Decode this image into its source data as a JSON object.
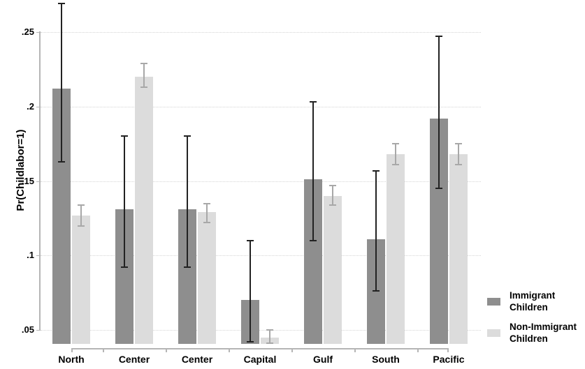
{
  "figure": {
    "background": "#ffffff",
    "text_color": "#000000",
    "axis_color": "#b5b5b5",
    "grid_color": "#d4d4d4"
  },
  "chart_data": {
    "type": "bar",
    "title": "",
    "xlabel": "",
    "ylabel": "Pr(Childlabor=1)",
    "grid": "horizontal-dotted",
    "legend_position": "right",
    "ylim": [
      0.041,
      0.268
    ],
    "categories": [
      "North",
      "Center",
      "Center",
      "Capital",
      "Gulf",
      "South",
      "Pacific"
    ],
    "y_ticks": [
      {
        "label": ".05",
        "value": 0.05
      },
      {
        "label": ".1",
        "value": 0.1
      },
      {
        "label": ".15",
        "value": 0.15
      },
      {
        "label": ".2",
        "value": 0.2
      },
      {
        "label": ".25",
        "value": 0.25
      }
    ],
    "series": [
      {
        "name": "Immigrant Children",
        "legend_label": "Immigrant\nChildren",
        "color": "#8e8e8e",
        "errorbar_color": "#222222",
        "values": [
          0.212,
          0.131,
          0.131,
          0.07,
          0.151,
          0.111,
          0.192
        ],
        "ci_low": [
          0.163,
          0.092,
          0.092,
          0.042,
          0.11,
          0.076,
          0.145
        ],
        "ci_high": [
          0.269,
          0.18,
          0.18,
          0.11,
          0.203,
          0.157,
          0.247
        ]
      },
      {
        "name": "Non-Immigrant Children",
        "legend_label": "Non-Immigrant\nChildren",
        "color": "#dcdcdc",
        "errorbar_color": "#a8a8a8",
        "values": [
          0.127,
          0.22,
          0.129,
          0.045,
          0.14,
          0.168,
          0.168
        ],
        "ci_low": [
          0.12,
          0.213,
          0.122,
          0.041,
          0.134,
          0.161,
          0.161
        ],
        "ci_high": [
          0.134,
          0.229,
          0.135,
          0.05,
          0.147,
          0.175,
          0.175
        ]
      }
    ]
  }
}
